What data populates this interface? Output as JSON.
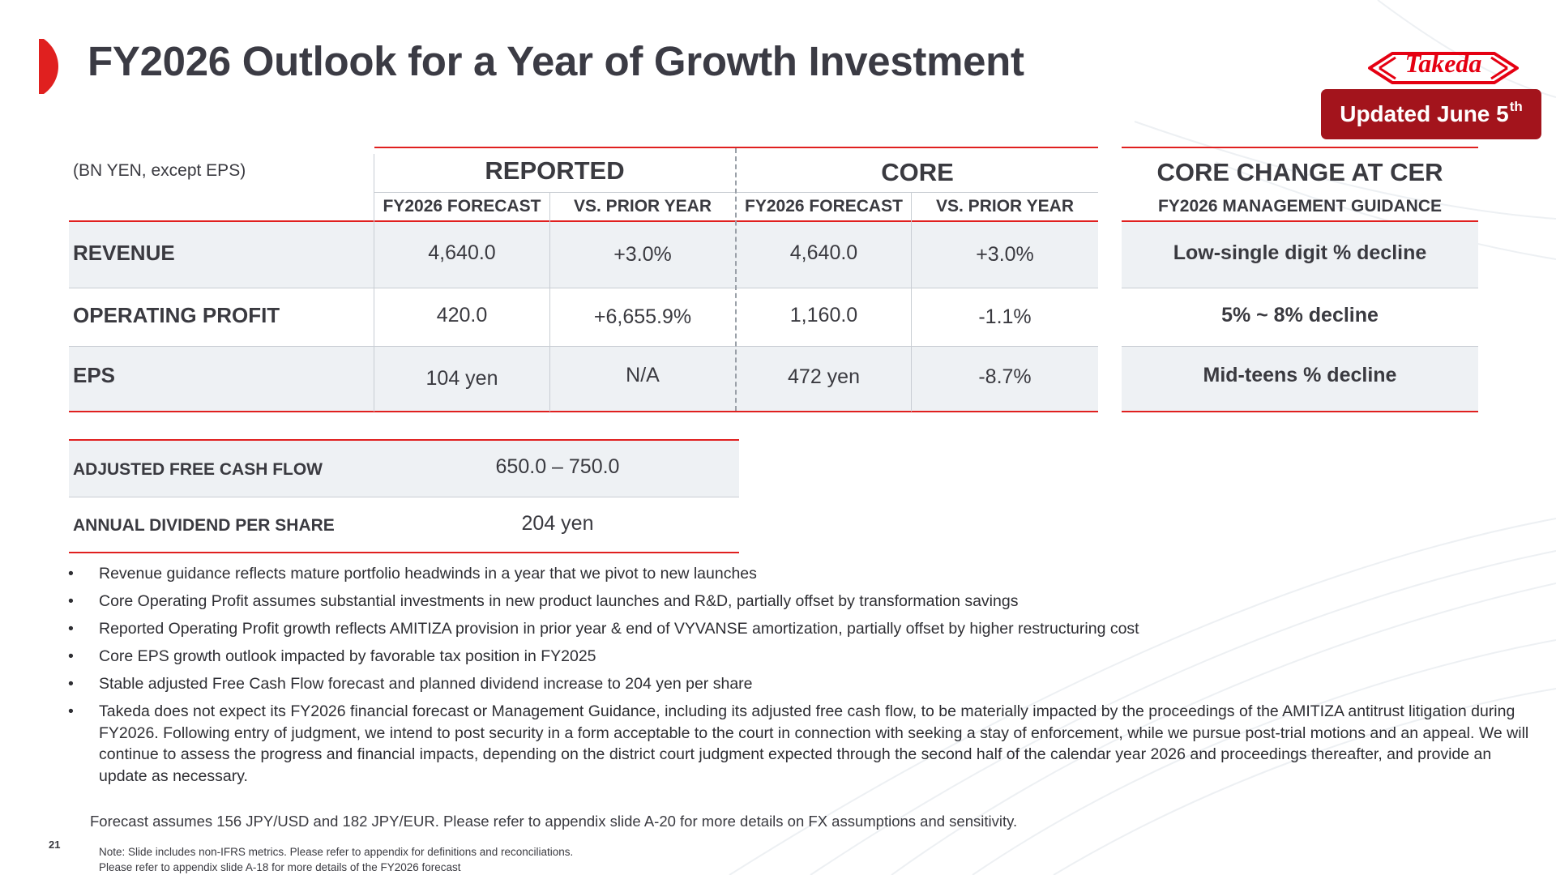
{
  "slide": {
    "title": "FY2026 Outlook for a Year of Growth Investment",
    "logo_text": "Takeda",
    "badge": {
      "text": "Updated June 5",
      "sup": "th"
    },
    "page_number": "21"
  },
  "colors": {
    "accent": "#e0201f",
    "badge": "#a3141c",
    "shade": "#eef1f4",
    "text": "#3a3a40"
  },
  "table": {
    "unit_label": "(BN YEN, except EPS)",
    "groups": {
      "reported": "REPORTED",
      "core": "CORE",
      "core_cer": "CORE CHANGE AT CER"
    },
    "subheaders": {
      "reported_forecast": "FY2026 FORECAST",
      "reported_vs": "VS. PRIOR YEAR",
      "core_forecast": "FY2026 FORECAST",
      "core_vs": "VS. PRIOR YEAR",
      "guidance": "FY2026 MANAGEMENT GUIDANCE"
    },
    "rows": [
      {
        "label": "REVENUE",
        "reported_forecast": "4,640.0",
        "reported_vs": "+3.0%",
        "core_forecast": "4,640.0",
        "core_vs": "+3.0%",
        "guidance": "Low-single digit % decline"
      },
      {
        "label": "OPERATING PROFIT",
        "reported_forecast": "420.0",
        "reported_vs": "+6,655.9%",
        "core_forecast": "1,160.0",
        "core_vs": "-1.1%",
        "guidance": "5% ~ 8% decline"
      },
      {
        "label": "EPS",
        "reported_forecast": "104 yen",
        "reported_vs": "N/A",
        "core_forecast": "472 yen",
        "core_vs": "-8.7%",
        "guidance": "Mid-teens % decline"
      }
    ]
  },
  "cash_table": {
    "rows": [
      {
        "label": "ADJUSTED FREE CASH FLOW",
        "value": "650.0 – 750.0"
      },
      {
        "label": "ANNUAL DIVIDEND PER SHARE",
        "value": "204 yen"
      }
    ]
  },
  "bullets": [
    "Revenue guidance reflects mature portfolio headwinds in a year that we pivot to new launches",
    "Core Operating Profit assumes substantial investments in new product launches and R&D, partially offset by transformation savings",
    "Reported Operating Profit growth reflects AMITIZA provision in prior year & end of VYVANSE amortization, partially offset by higher restructuring cost",
    "Core EPS growth outlook impacted by favorable tax position in FY2025",
    "Stable adjusted Free Cash Flow forecast and planned dividend increase to 204 yen per share",
    "Takeda does not expect its FY2026 financial forecast or Management Guidance, including its adjusted free cash flow, to be materially impacted by the proceedings of the AMITIZA antitrust litigation during FY2026. Following entry of judgment, we intend to post security in a form acceptable to the court in connection with seeking a stay of enforcement, while we pursue post-trial motions and an appeal. We will continue to assess the progress and financial impacts, depending on the district court judgment expected through the second half of the calendar year 2026 and proceedings thereafter, and provide an update as necessary."
  ],
  "bullet_symbol": "•",
  "forecast_note": "Forecast assumes 156 JPY/USD and 182 JPY/EUR. Please refer to appendix slide A-20 for more details on FX assumptions and sensitivity.",
  "footnotes": [
    "Note: Slide includes non-IFRS metrics. Please refer to appendix for definitions and reconciliations.",
    "Please refer to appendix slide A-18 for more details of the FY2026 forecast"
  ]
}
